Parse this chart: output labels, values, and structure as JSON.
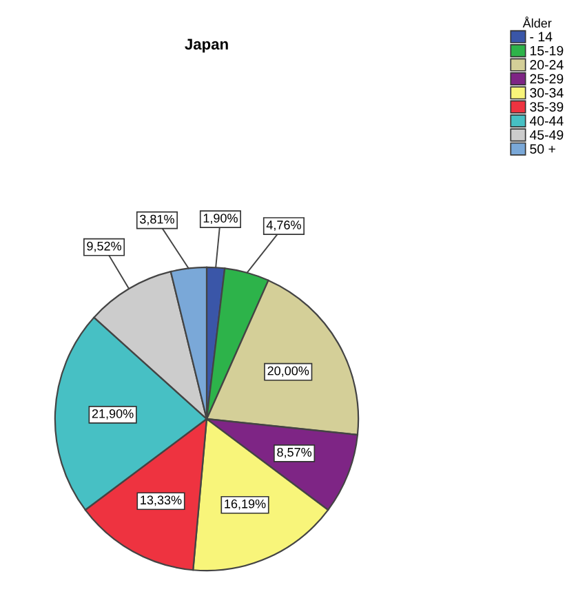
{
  "chart_data": {
    "type": "pie",
    "title": "Japan",
    "legend_title": "Ålder",
    "categories": [
      "- 14",
      "15-19",
      "20-24",
      "25-29",
      "30-34",
      "35-39",
      "40-44",
      "45-49",
      "50 +"
    ],
    "values": [
      1.9,
      4.76,
      20.0,
      8.57,
      16.19,
      13.33,
      21.9,
      9.52,
      3.81
    ],
    "colors": [
      "#3a56a8",
      "#2db34a",
      "#d4cf98",
      "#7e2585",
      "#f8f57a",
      "#ee3340",
      "#47c0c4",
      "#cccccc",
      "#7aa8d8"
    ],
    "value_labels": [
      "1,90%",
      "4,76%",
      "20,00%",
      "8,57%",
      "16,19%",
      "13,33%",
      "21,90%",
      "9,52%",
      "3,81%"
    ],
    "legend": "top right"
  }
}
